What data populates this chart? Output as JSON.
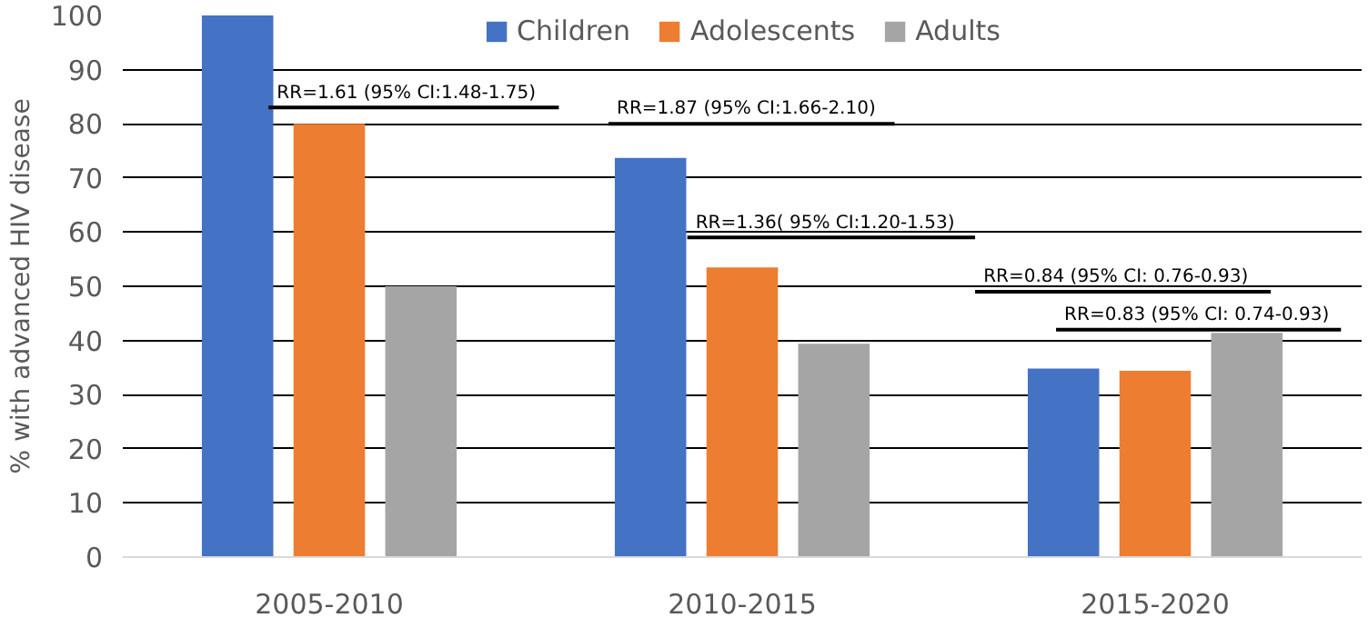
{
  "chart_data": {
    "type": "bar",
    "ylabel": "% with advanced HIV disease",
    "categories": [
      "2005-2010",
      "2010-2015",
      "2015-2020"
    ],
    "series": [
      {
        "name": "Children",
        "color": "#4472c4",
        "values": [
          100,
          73.7,
          34.8
        ]
      },
      {
        "name": "Adolescents",
        "color": "#ed7d31",
        "values": [
          80,
          53.5,
          34.4
        ]
      },
      {
        "name": "Adults",
        "color": "#a5a5a5",
        "values": [
          50,
          39.4,
          41.4
        ]
      }
    ],
    "ylim": [
      0,
      100
    ],
    "yticks": [
      0,
      10,
      20,
      30,
      40,
      50,
      60,
      70,
      80,
      90,
      100
    ],
    "grid": "y",
    "legend": "top",
    "annotations": [
      "RR=1.61 (95% CI:1.48-1.75)",
      "RR=1.87 (95% CI:1.66-2.10)",
      "RR=1.36( 95% CI:1.20-1.53)",
      "RR=0.84 (95% CI: 0.76-0.93)",
      "RR=0.83 (95% CI: 0.74-0.93)"
    ]
  }
}
